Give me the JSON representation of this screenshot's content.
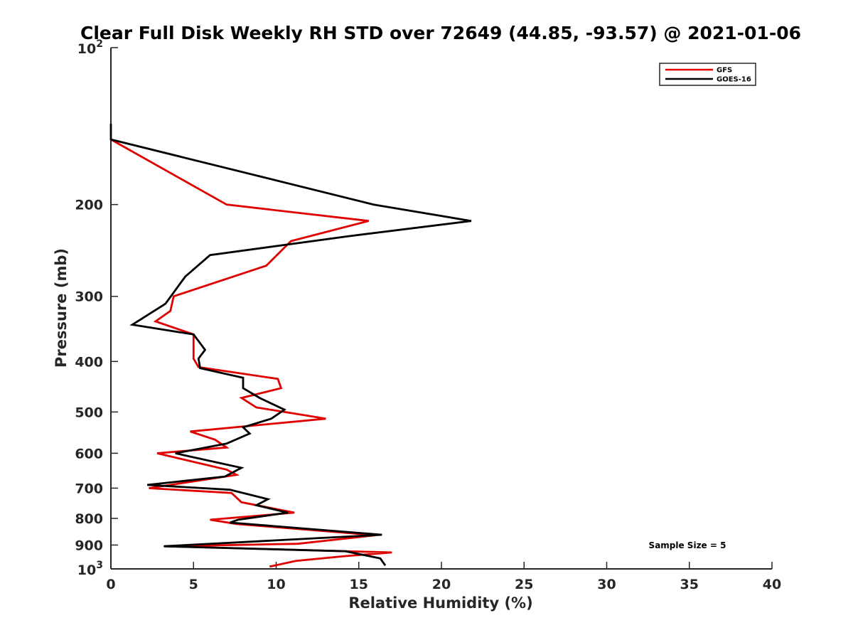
{
  "chart_data": {
    "type": "line",
    "title": "Clear Full Disk Weekly RH STD over 72649 (44.85, -93.57) @ 2021-01-06",
    "xlabel": "Relative Humidity (%)",
    "ylabel": "Pressure (mb)",
    "xlim": [
      0,
      40
    ],
    "ylim": [
      100,
      1000
    ],
    "yscale": "log",
    "y_reversed": true,
    "x_ticks": [
      0,
      5,
      10,
      15,
      20,
      25,
      30,
      35,
      40
    ],
    "x_tick_labels": [
      "0",
      "5",
      "10",
      "15",
      "20",
      "25",
      "30",
      "35",
      "40"
    ],
    "y_ticks": [
      200,
      300,
      400,
      500,
      600,
      700,
      800,
      900
    ],
    "y_tick_labels": [
      "200",
      "300",
      "400",
      "500",
      "600",
      "700",
      "800",
      "900"
    ],
    "y_decade_ticks": [
      {
        "value": 100,
        "base": "10",
        "exp": "2"
      },
      {
        "value": 1000,
        "base": "10",
        "exp": "3"
      }
    ],
    "grid": false,
    "legend_position": "top-right",
    "annotation": "Sample Size = 5",
    "series": [
      {
        "name": "GFS",
        "color": "#e00000",
        "points": [
          [
            0,
            150
          ],
          [
            7,
            200
          ],
          [
            15.6,
            215
          ],
          [
            10.9,
            235
          ],
          [
            9.4,
            262
          ],
          [
            3.8,
            300
          ],
          [
            3.6,
            320
          ],
          [
            2.7,
            335
          ],
          [
            5.0,
            355
          ],
          [
            5.0,
            375
          ],
          [
            5.0,
            395
          ],
          [
            5.3,
            410
          ],
          [
            10.1,
            432
          ],
          [
            10.3,
            450
          ],
          [
            7.9,
            470
          ],
          [
            8.8,
            490
          ],
          [
            13.0,
            515
          ],
          [
            4.8,
            545
          ],
          [
            6.3,
            565
          ],
          [
            7.0,
            585
          ],
          [
            2.8,
            600
          ],
          [
            7.0,
            645
          ],
          [
            7.6,
            660
          ],
          [
            2.3,
            700
          ],
          [
            7.3,
            715
          ],
          [
            7.9,
            745
          ],
          [
            11.1,
            780
          ],
          [
            6.0,
            805
          ],
          [
            7.6,
            820
          ],
          [
            16.0,
            862
          ],
          [
            11.3,
            895
          ],
          [
            3.3,
            905
          ],
          [
            17.0,
            930
          ],
          [
            14.2,
            945
          ],
          [
            11.2,
            965
          ],
          [
            9.6,
            990
          ]
        ]
      },
      {
        "name": "GOES-16",
        "color": "#000000",
        "points": [
          [
            0,
            140
          ],
          [
            0,
            150
          ],
          [
            15.9,
            200
          ],
          [
            21.8,
            215
          ],
          [
            14.4,
            230
          ],
          [
            6.0,
            250
          ],
          [
            4.5,
            275
          ],
          [
            3.3,
            310
          ],
          [
            1.3,
            340
          ],
          [
            5.0,
            355
          ],
          [
            5.7,
            380
          ],
          [
            5.3,
            395
          ],
          [
            5.4,
            412
          ],
          [
            8.0,
            430
          ],
          [
            8.0,
            450
          ],
          [
            9.0,
            470
          ],
          [
            10.5,
            495
          ],
          [
            9.7,
            515
          ],
          [
            8.0,
            535
          ],
          [
            8.4,
            550
          ],
          [
            7.0,
            575
          ],
          [
            3.9,
            600
          ],
          [
            7.9,
            640
          ],
          [
            6.9,
            665
          ],
          [
            2.2,
            690
          ],
          [
            7.2,
            705
          ],
          [
            9.5,
            735
          ],
          [
            8.8,
            755
          ],
          [
            10.7,
            780
          ],
          [
            7.7,
            805
          ],
          [
            7.2,
            815
          ],
          [
            16.4,
            860
          ],
          [
            3.2,
            905
          ],
          [
            14.2,
            925
          ],
          [
            16.3,
            955
          ],
          [
            16.6,
            985
          ]
        ]
      }
    ]
  }
}
